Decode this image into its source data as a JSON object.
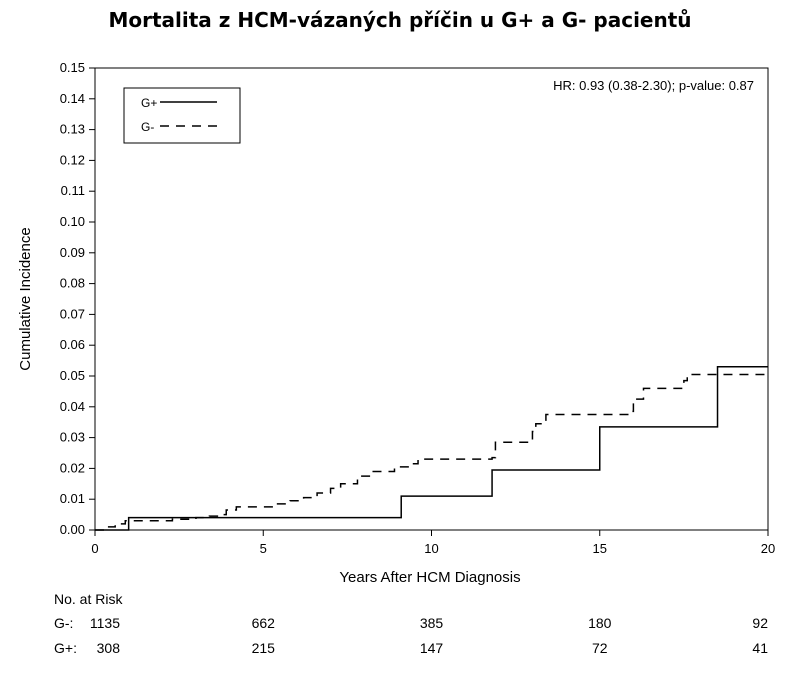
{
  "chart_data": {
    "type": "line",
    "title": "Mortalita z HCM-vázaných příčin u G+ a G- pacientů",
    "xlabel": "Years After HCM Diagnosis",
    "ylabel": "Cumulative Incidence",
    "xlim": [
      0,
      20
    ],
    "ylim": [
      0,
      0.15
    ],
    "xticks": [
      "0",
      "5",
      "10",
      "15",
      "20"
    ],
    "yticks": [
      "0.00",
      "0.01",
      "0.02",
      "0.03",
      "0.04",
      "0.05",
      "0.06",
      "0.07",
      "0.08",
      "0.09",
      "0.10",
      "0.11",
      "0.12",
      "0.13",
      "0.14",
      "0.15"
    ],
    "grid": false,
    "legend_position": "top-left",
    "annotation": "HR: 0.93 (0.38-2.30); p-value: 0.87",
    "series": [
      {
        "name": "G+",
        "style": "solid",
        "color": "#000000",
        "steps": [
          [
            0,
            0
          ],
          [
            1.0,
            0.004
          ],
          [
            9.1,
            0.011
          ],
          [
            11.8,
            0.0195
          ],
          [
            15.0,
            0.0335
          ],
          [
            18.5,
            0.053
          ],
          [
            20,
            0.053
          ]
        ]
      },
      {
        "name": "G-",
        "style": "dashed",
        "color": "#000000",
        "steps": [
          [
            0,
            0
          ],
          [
            0.3,
            0.001
          ],
          [
            0.6,
            0.002
          ],
          [
            0.9,
            0.003
          ],
          [
            2.3,
            0.0035
          ],
          [
            3.0,
            0.004
          ],
          [
            3.4,
            0.0045
          ],
          [
            3.8,
            0.005
          ],
          [
            3.9,
            0.0065
          ],
          [
            4.2,
            0.0075
          ],
          [
            5.3,
            0.0085
          ],
          [
            5.8,
            0.0095
          ],
          [
            6.2,
            0.0105
          ],
          [
            6.6,
            0.012
          ],
          [
            7.0,
            0.0135
          ],
          [
            7.3,
            0.015
          ],
          [
            7.8,
            0.0175
          ],
          [
            8.2,
            0.019
          ],
          [
            8.9,
            0.0205
          ],
          [
            9.4,
            0.0215
          ],
          [
            9.6,
            0.023
          ],
          [
            11.8,
            0.0235
          ],
          [
            11.9,
            0.0285
          ],
          [
            12.9,
            0.029
          ],
          [
            13.0,
            0.032
          ],
          [
            13.1,
            0.0345
          ],
          [
            13.4,
            0.0375
          ],
          [
            15.9,
            0.0385
          ],
          [
            16.0,
            0.0425
          ],
          [
            16.3,
            0.046
          ],
          [
            17.5,
            0.0485
          ],
          [
            17.6,
            0.0505
          ],
          [
            20,
            0.0505
          ]
        ]
      }
    ]
  },
  "risk_table": {
    "heading": "No. at Risk",
    "rows": [
      {
        "label": "G-:",
        "values": [
          "1135",
          "662",
          "385",
          "180",
          "92"
        ]
      },
      {
        "label": "G+:",
        "values": [
          "308",
          "215",
          "147",
          "72",
          "41"
        ]
      }
    ]
  }
}
